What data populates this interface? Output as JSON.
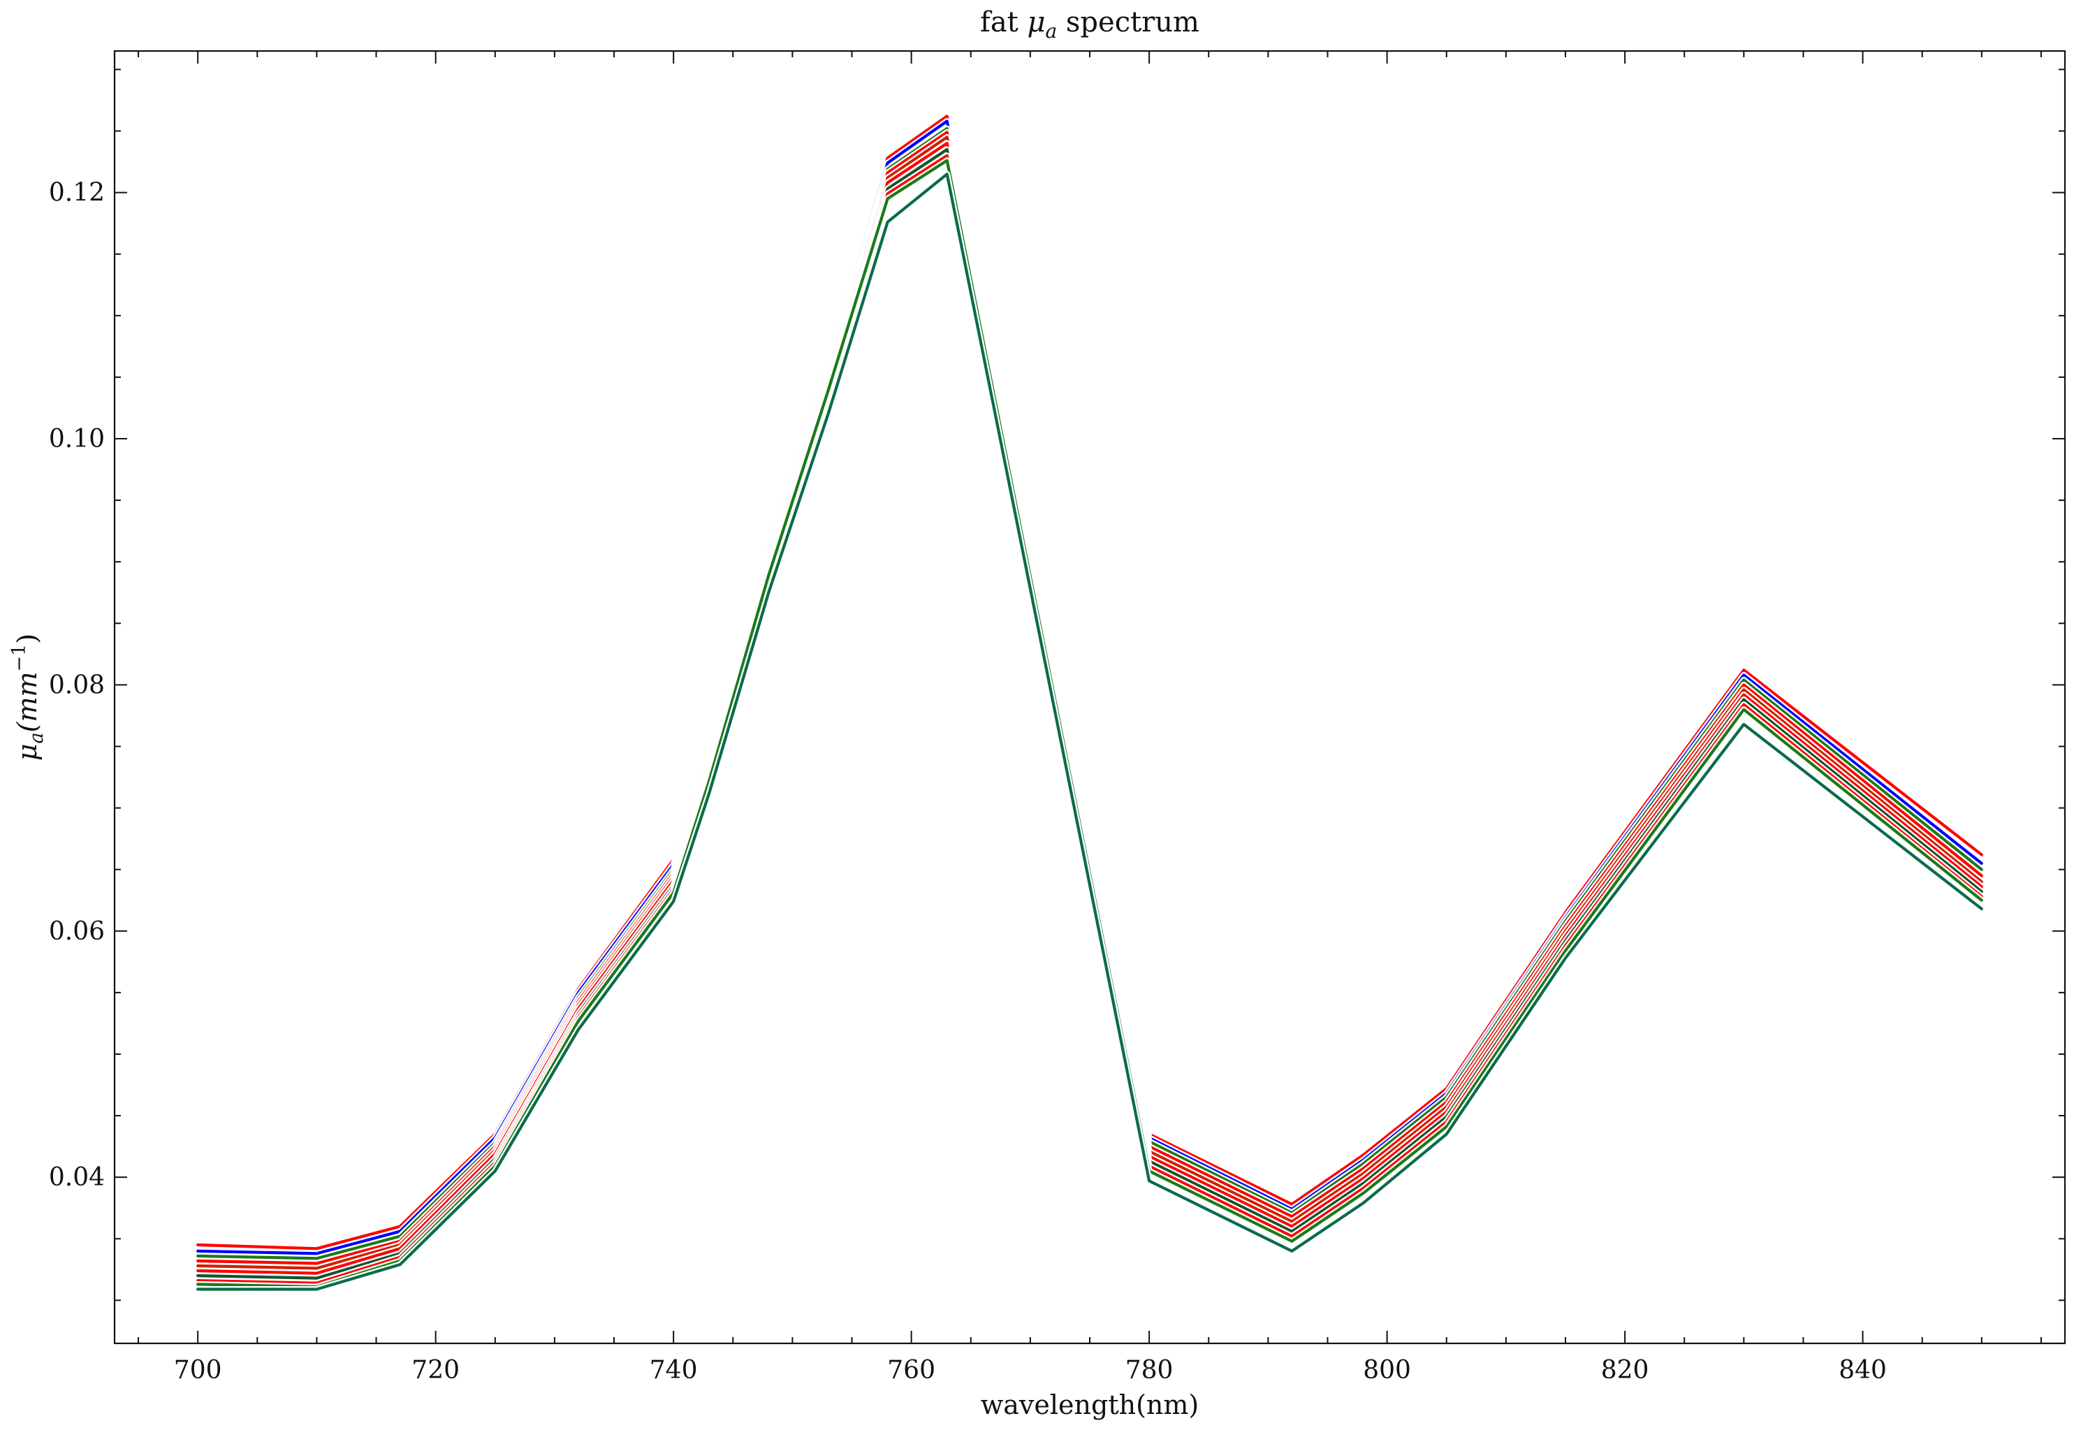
{
  "chart_data": {
    "type": "line",
    "title": {
      "prefix": "fat ",
      "symbol": "μ",
      "subscript": "a",
      "suffix": " spectrum"
    },
    "xlabel": "wavelength(nm)",
    "ylabel": {
      "symbol": "μ",
      "subscript": "a",
      "unit_open": "(mm",
      "unit_exp": "−1",
      "unit_close": ")"
    },
    "xlim": [
      693,
      857
    ],
    "ylim": [
      0.0265,
      0.1315
    ],
    "xticks": [
      700,
      720,
      740,
      760,
      780,
      800,
      820,
      840
    ],
    "xtick_labels": [
      "700",
      "720",
      "740",
      "760",
      "780",
      "800",
      "820",
      "840"
    ],
    "yticks": [
      0.04,
      0.06,
      0.08,
      0.1,
      0.12
    ],
    "ytick_labels": [
      "0.04",
      "0.06",
      "0.08",
      "0.10",
      "0.12"
    ],
    "grid": false,
    "legend": "none",
    "x": [
      700,
      710,
      717,
      725,
      732,
      740,
      743,
      748,
      753,
      758,
      763,
      780,
      792,
      798,
      805,
      815,
      830,
      850
    ],
    "series": [
      {
        "color": "#ff0000",
        "values": [
          0.0345,
          0.0342,
          0.036,
          0.0435,
          0.0553,
          0.0658,
          0.0748,
          0.0915,
          0.1065,
          0.1228,
          0.1262,
          0.0435,
          0.0378,
          0.0418,
          0.0472,
          0.0615,
          0.0812,
          0.0662
        ]
      },
      {
        "color": "#0000ff",
        "values": [
          0.034,
          0.0338,
          0.0356,
          0.0432,
          0.055,
          0.0654,
          0.0745,
          0.0912,
          0.1062,
          0.1224,
          0.1258,
          0.0432,
          0.0374,
          0.0414,
          0.0468,
          0.0611,
          0.0808,
          0.0655
        ]
      },
      {
        "color": "#1a7a1a",
        "values": [
          0.0336,
          0.0334,
          0.0352,
          0.0428,
          0.0546,
          0.065,
          0.0741,
          0.0908,
          0.1058,
          0.1219,
          0.1252,
          0.0429,
          0.0371,
          0.0411,
          0.0465,
          0.0608,
          0.0804,
          0.065
        ]
      },
      {
        "color": "#ff0000",
        "values": [
          0.0332,
          0.033,
          0.0348,
          0.0425,
          0.0543,
          0.0647,
          0.0738,
          0.0905,
          0.1055,
          0.1216,
          0.1249,
          0.0425,
          0.0368,
          0.0407,
          0.0461,
          0.0604,
          0.08,
          0.0645
        ]
      },
      {
        "color": "#cc2200",
        "values": [
          0.0328,
          0.0326,
          0.0345,
          0.0422,
          0.054,
          0.0644,
          0.0735,
          0.0902,
          0.1052,
          0.1212,
          0.1245,
          0.0421,
          0.0364,
          0.0403,
          0.0457,
          0.06,
          0.0796,
          0.064
        ]
      },
      {
        "color": "#ff0000",
        "values": [
          0.0324,
          0.0322,
          0.0342,
          0.0419,
          0.0537,
          0.0641,
          0.0732,
          0.0899,
          0.1049,
          0.1208,
          0.124,
          0.0417,
          0.036,
          0.0399,
          0.0453,
          0.0596,
          0.0792,
          0.0636
        ]
      },
      {
        "color": "#115533",
        "values": [
          0.032,
          0.0318,
          0.0338,
          0.0415,
          0.0533,
          0.0637,
          0.0728,
          0.0895,
          0.1045,
          0.1203,
          0.1235,
          0.0413,
          0.0356,
          0.0395,
          0.0449,
          0.0592,
          0.0788,
          0.0632
        ]
      },
      {
        "color": "#ff0000",
        "values": [
          0.0316,
          0.0314,
          0.0335,
          0.0412,
          0.053,
          0.0634,
          0.0725,
          0.0892,
          0.1042,
          0.1199,
          0.123,
          0.0409,
          0.0352,
          0.0391,
          0.0445,
          0.0588,
          0.0784,
          0.0628
        ]
      },
      {
        "color": "#1a7a1a",
        "values": [
          0.0313,
          0.0311,
          0.0332,
          0.0409,
          0.0527,
          0.0631,
          0.0722,
          0.0889,
          0.1039,
          0.1195,
          0.1226,
          0.0405,
          0.0348,
          0.0387,
          0.0441,
          0.0584,
          0.078,
          0.0625
        ]
      },
      {
        "color": "#0b6b4a",
        "values": [
          0.0309,
          0.0309,
          0.0329,
          0.0405,
          0.052,
          0.0624,
          0.0712,
          0.0875,
          0.102,
          0.1176,
          0.1215,
          0.0397,
          0.034,
          0.0379,
          0.0435,
          0.0578,
          0.0768,
          0.0618
        ]
      }
    ]
  }
}
